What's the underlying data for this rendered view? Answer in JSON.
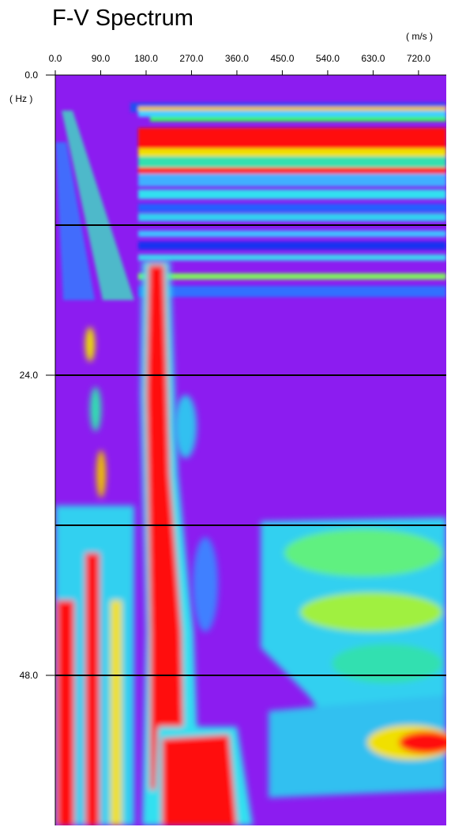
{
  "chart_data": {
    "type": "heatmap",
    "title": "F-V Spectrum",
    "x_unit": "( m/s )",
    "y_unit": "( Hz )",
    "xlim": [
      0,
      775
    ],
    "ylim": [
      0,
      60
    ],
    "xticks": [
      {
        "value": 0,
        "label": "0.0"
      },
      {
        "value": 90,
        "label": "90.0"
      },
      {
        "value": 180,
        "label": "180.0"
      },
      {
        "value": 270,
        "label": "270.0"
      },
      {
        "value": 360,
        "label": "360.0"
      },
      {
        "value": 450,
        "label": "450.0"
      },
      {
        "value": 540,
        "label": "540.0"
      },
      {
        "value": 630,
        "label": "630.0"
      },
      {
        "value": 720,
        "label": "720.0"
      }
    ],
    "yticks": [
      {
        "value": 0,
        "label": "0.0"
      },
      {
        "value": 24,
        "label": "24.0"
      },
      {
        "value": 48,
        "label": "48.0"
      }
    ],
    "ygrid": [
      12,
      24,
      36,
      48
    ]
  }
}
